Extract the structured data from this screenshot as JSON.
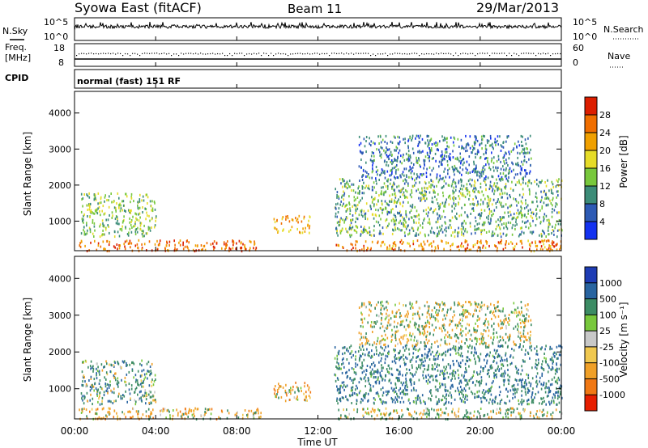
{
  "header": {
    "station": "Syowa East (fitACF)",
    "beam": "Beam 11",
    "date": "29/Mar/2013"
  },
  "top_panels": {
    "nsky_label": "N.Sky",
    "nsky_tick_hi": "10^5",
    "nsky_tick_lo": "10^0",
    "nsearch_label": "N.Search",
    "nsearch_tick_hi": "10^5",
    "nsearch_tick_lo": "10^0",
    "freq_label_1": "Freq.",
    "freq_label_2": "[MHz]",
    "freq_tick_hi": "18",
    "freq_tick_lo": "8",
    "nave_label": "Nave",
    "nave_tick_hi": "60",
    "nave_tick_lo": "0",
    "cpid_label": "CPID",
    "cpid_text": "normal (fast) 151 RF"
  },
  "axis": {
    "ylabel": "Slant Range [km]",
    "xlabel": "Time UT",
    "y_ticks": [
      "1000",
      "2000",
      "3000",
      "4000"
    ],
    "x_ticks": [
      "00:00",
      "04:00",
      "08:00",
      "12:00",
      "16:00",
      "20:00",
      "00:00"
    ]
  },
  "power_scale": {
    "label": "Power [dB]",
    "ticks": [
      "4",
      "8",
      "12",
      "16",
      "20",
      "24",
      "28"
    ],
    "colors": [
      "#1432f0",
      "#2d5ab4",
      "#3c8c78",
      "#78c83c",
      "#e6dc28",
      "#f0a000",
      "#f06e00",
      "#dc1e00"
    ]
  },
  "velocity_scale": {
    "label": "Velocity [m s⁻¹]",
    "ticks": [
      "1000",
      "500",
      "100",
      "25",
      "-25",
      "-100",
      "-500",
      "-1000"
    ],
    "colors": [
      "#1e3cb4",
      "#2864a0",
      "#3c8c64",
      "#78c83c",
      "#c8c8c8",
      "#f0c850",
      "#f0a028",
      "#f07814",
      "#e61e00"
    ]
  },
  "chart_data": [
    {
      "type": "heatmap",
      "title": "Power [dB]",
      "xlabel": "Time UT",
      "ylabel": "Slant Range [km]",
      "xlim": [
        "00:00",
        "24:00"
      ],
      "ylim": [
        180,
        4600
      ],
      "zlim": [
        0,
        30
      ],
      "scatter_regions": [
        {
          "t_start": 0.2,
          "t_end": 9.2,
          "range_min": 200,
          "range_max": 500,
          "value": 26
        },
        {
          "t_start": 0.3,
          "t_end": 4.0,
          "range_min": 600,
          "range_max": 1800,
          "value": 14
        },
        {
          "t_start": 9.8,
          "t_end": 11.6,
          "range_min": 700,
          "range_max": 1200,
          "value": 22
        },
        {
          "t_start": 12.8,
          "t_end": 24.0,
          "range_min": 200,
          "range_max": 500,
          "value": 24
        },
        {
          "t_start": 12.8,
          "t_end": 24.0,
          "range_min": 600,
          "range_max": 2200,
          "value": 12
        },
        {
          "t_start": 14.0,
          "t_end": 22.5,
          "range_min": 2200,
          "range_max": 3400,
          "value": 8
        }
      ]
    },
    {
      "type": "heatmap",
      "title": "Velocity [m s^-1]",
      "xlabel": "Time UT",
      "ylabel": "Slant Range [km]",
      "xlim": [
        "00:00",
        "24:00"
      ],
      "ylim": [
        180,
        4600
      ],
      "zlim": [
        -1000,
        1000
      ],
      "scatter_regions": [
        {
          "t_start": 0.2,
          "t_end": 9.2,
          "range_min": 200,
          "range_max": 500,
          "value": -200
        },
        {
          "t_start": 0.3,
          "t_end": 4.0,
          "range_min": 600,
          "range_max": 1800,
          "value": 300
        },
        {
          "t_start": 9.8,
          "t_end": 11.6,
          "range_min": 700,
          "range_max": 1200,
          "value": -300
        },
        {
          "t_start": 12.8,
          "t_end": 24.0,
          "range_min": 200,
          "range_max": 500,
          "value": 60
        },
        {
          "t_start": 12.8,
          "t_end": 24.0,
          "range_min": 600,
          "range_max": 2200,
          "value": 500
        },
        {
          "t_start": 14.0,
          "t_end": 22.5,
          "range_min": 2200,
          "range_max": 3400,
          "value": 0
        }
      ]
    }
  ]
}
